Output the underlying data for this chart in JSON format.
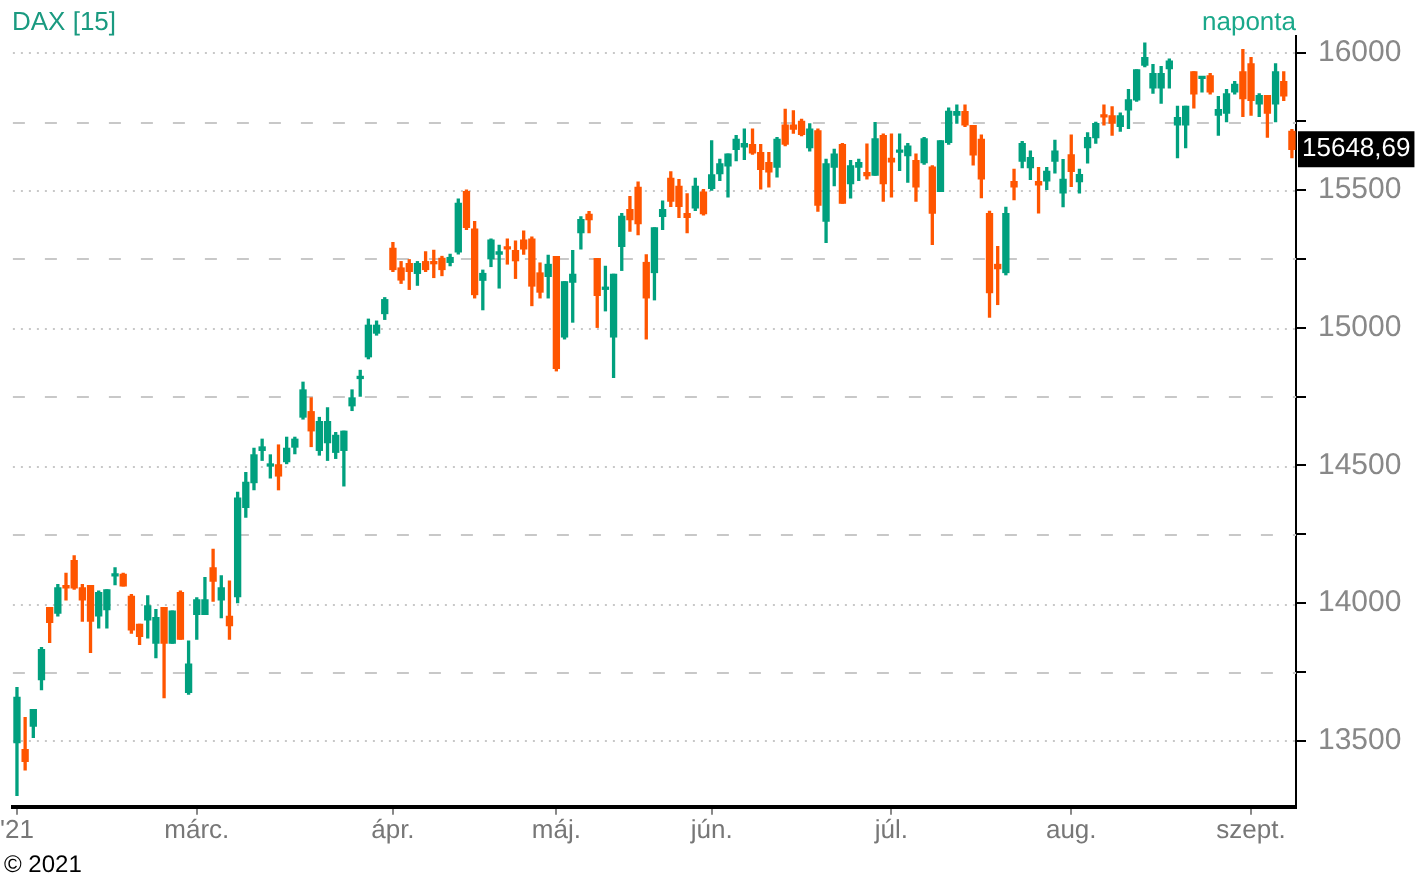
{
  "chart_data": {
    "type": "candlestick",
    "title": "DAX [15]",
    "subtitle": "naponta",
    "categories": [
      "'21",
      null,
      null,
      null,
      null,
      null,
      null,
      null,
      null,
      null,
      null,
      null,
      null,
      null,
      null,
      null,
      null,
      null,
      null,
      null,
      null,
      null,
      "márc.",
      null,
      null,
      null,
      null,
      null,
      null,
      null,
      null,
      null,
      null,
      null,
      null,
      null,
      null,
      null,
      null,
      null,
      null,
      null,
      null,
      null,
      null,
      null,
      "ápr.",
      null,
      null,
      null,
      null,
      null,
      null,
      null,
      null,
      null,
      null,
      null,
      null,
      null,
      null,
      null,
      null,
      null,
      null,
      null,
      "máj.",
      null,
      null,
      null,
      null,
      null,
      null,
      null,
      null,
      null,
      null,
      null,
      null,
      null,
      null,
      null,
      null,
      null,
      null,
      "jún.",
      null,
      null,
      null,
      null,
      null,
      null,
      null,
      null,
      null,
      null,
      null,
      null,
      null,
      null,
      null,
      null,
      null,
      null,
      null,
      null,
      null,
      "júl.",
      null,
      null,
      null,
      null,
      null,
      null,
      null,
      null,
      null,
      null,
      null,
      null,
      null,
      null,
      null,
      null,
      null,
      null,
      null,
      null,
      null,
      "aug.",
      null,
      null,
      null,
      null,
      null,
      null,
      null,
      null,
      null,
      null,
      null,
      null,
      null,
      null,
      null,
      null,
      null,
      null,
      null,
      null,
      null,
      "szept.",
      null,
      null,
      null,
      null,
      null
    ],
    "ohlc": [
      [
        13493,
        13693,
        13302,
        13657
      ],
      [
        13468,
        13584,
        13394,
        13425
      ],
      [
        13553,
        13613,
        13512,
        13613
      ],
      [
        13722,
        13838,
        13686,
        13831
      ],
      [
        13983,
        13983,
        13857,
        13930
      ],
      [
        13964,
        14067,
        13954,
        14055
      ],
      [
        14063,
        14108,
        14012,
        14055
      ],
      [
        14154,
        14171,
        14051,
        14055
      ],
      [
        14055,
        14067,
        13935,
        14012
      ],
      [
        14063,
        14063,
        13821,
        13935
      ],
      [
        13954,
        14043,
        13910,
        14038
      ],
      [
        13976,
        14048,
        13910,
        14048
      ],
      [
        14099,
        14128,
        14067,
        14104
      ],
      [
        14104,
        14108,
        14063,
        14063
      ],
      [
        14024,
        14031,
        13891,
        13903
      ],
      [
        13923,
        13923,
        13850,
        13879
      ],
      [
        13939,
        14026,
        13874,
        13990
      ],
      [
        13855,
        13976,
        13802,
        13947
      ],
      [
        13983,
        13983,
        13657,
        13855
      ],
      [
        13855,
        13971,
        13855,
        13971
      ],
      [
        14038,
        14043,
        13869,
        13869
      ],
      [
        13676,
        13862,
        13669,
        13778
      ],
      [
        13959,
        14019,
        13869,
        14012
      ],
      [
        13959,
        14092,
        13959,
        14012
      ],
      [
        14128,
        14195,
        14007,
        14080
      ],
      [
        14012,
        14099,
        13947,
        14055
      ],
      [
        13952,
        14080,
        13869,
        13918
      ],
      [
        14024,
        14402,
        14002,
        14381
      ],
      [
        14348,
        14474,
        14312,
        14438
      ],
      [
        14438,
        14562,
        14412,
        14538
      ],
      [
        14555,
        14595,
        14519,
        14567
      ],
      [
        14498,
        14538,
        14455,
        14502
      ],
      [
        14502,
        14574,
        14412,
        14462
      ],
      [
        14514,
        14602,
        14507,
        14562
      ],
      [
        14567,
        14602,
        14543,
        14595
      ],
      [
        14676,
        14802,
        14669,
        14774
      ],
      [
        14695,
        14745,
        14569,
        14626
      ],
      [
        14555,
        14674,
        14538,
        14659
      ],
      [
        14583,
        14709,
        14519,
        14659
      ],
      [
        14548,
        14619,
        14526,
        14609
      ],
      [
        14555,
        14624,
        14426,
        14624
      ],
      [
        14717,
        14774,
        14700,
        14745
      ],
      [
        14816,
        14845,
        14752,
        14821
      ],
      [
        14895,
        15031,
        14888,
        15009
      ],
      [
        14981,
        15024,
        14974,
        15009
      ],
      [
        15052,
        15109,
        15031,
        15102
      ],
      [
        15288,
        15309,
        15205,
        15212
      ],
      [
        15217,
        15240,
        15162,
        15174
      ],
      [
        15233,
        15247,
        15140,
        15205
      ],
      [
        15198,
        15240,
        15155,
        15233
      ],
      [
        15240,
        15276,
        15205,
        15212
      ],
      [
        15238,
        15281,
        15183,
        15233
      ],
      [
        15252,
        15259,
        15190,
        15212
      ],
      [
        15238,
        15267,
        15226,
        15255
      ],
      [
        15276,
        15467,
        15269,
        15452
      ],
      [
        15495,
        15500,
        15358,
        15365
      ],
      [
        15358,
        15386,
        15109,
        15121
      ],
      [
        15173,
        15209,
        15066,
        15197
      ],
      [
        15251,
        15322,
        15223,
        15318
      ],
      [
        15268,
        15299,
        15145,
        15272
      ],
      [
        15294,
        15322,
        15232,
        15287
      ],
      [
        15280,
        15315,
        15180,
        15244
      ],
      [
        15318,
        15351,
        15268,
        15287
      ],
      [
        15322,
        15329,
        15081,
        15152
      ],
      [
        15199,
        15235,
        15109,
        15130
      ],
      [
        15187,
        15263,
        15109,
        15230
      ],
      [
        15258,
        15258,
        14844,
        14853
      ],
      [
        14967,
        15167,
        14960,
        15167
      ],
      [
        15166,
        15280,
        15021,
        15194
      ],
      [
        15346,
        15403,
        15287,
        15393
      ],
      [
        15412,
        15422,
        15346,
        15393
      ],
      [
        15251,
        15251,
        15002,
        15118
      ],
      [
        15140,
        15223,
        15062,
        15145
      ],
      [
        14967,
        15194,
        14820,
        15194
      ],
      [
        15296,
        15415,
        15209,
        15405
      ],
      [
        15429,
        15476,
        15351,
        15393
      ],
      [
        15510,
        15529,
        15339,
        15379
      ],
      [
        15237,
        15265,
        14960,
        15109
      ],
      [
        15201,
        15363,
        15102,
        15363
      ],
      [
        15405,
        15460,
        15358,
        15429
      ],
      [
        15543,
        15566,
        15441,
        15460
      ],
      [
        15514,
        15538,
        15401,
        15441
      ],
      [
        15415,
        15486,
        15346,
        15401
      ],
      [
        15436,
        15543,
        15427,
        15514
      ],
      [
        15493,
        15502,
        15410,
        15415
      ],
      [
        15507,
        15679,
        15500,
        15555
      ],
      [
        15560,
        15612,
        15536,
        15595
      ],
      [
        15588,
        15631,
        15476,
        15631
      ],
      [
        15648,
        15698,
        15607,
        15684
      ],
      [
        15657,
        15722,
        15612,
        15669
      ],
      [
        15665,
        15722,
        15631,
        15636
      ],
      [
        15636,
        15665,
        15505,
        15576
      ],
      [
        15600,
        15636,
        15512,
        15567
      ],
      [
        15584,
        15691,
        15548,
        15684
      ],
      [
        15736,
        15793,
        15662,
        15667
      ],
      [
        15736,
        15788,
        15707,
        15722
      ],
      [
        15750,
        15757,
        15698,
        15703
      ],
      [
        15655,
        15741,
        15643,
        15722
      ],
      [
        15715,
        15722,
        15424,
        15446
      ],
      [
        15388,
        15612,
        15310,
        15595
      ],
      [
        15584,
        15648,
        15517,
        15631
      ],
      [
        15665,
        15669,
        15453,
        15453
      ],
      [
        15524,
        15607,
        15472,
        15588
      ],
      [
        15584,
        15612,
        15536,
        15600
      ],
      [
        15564,
        15667,
        15541,
        15553
      ],
      [
        15555,
        15745,
        15555,
        15686
      ],
      [
        15698,
        15703,
        15460,
        15524
      ],
      [
        15615,
        15703,
        15476,
        15603
      ],
      [
        15638,
        15703,
        15572,
        15643
      ],
      [
        15626,
        15669,
        15529,
        15660
      ],
      [
        15607,
        15631,
        15460,
        15512
      ],
      [
        15600,
        15691,
        15595,
        15686
      ],
      [
        15584,
        15588,
        15303,
        15417
      ],
      [
        15496,
        15679,
        15496,
        15679
      ],
      [
        15674,
        15798,
        15667,
        15786
      ],
      [
        15773,
        15809,
        15744,
        15785
      ],
      [
        15785,
        15809,
        15732,
        15737
      ],
      [
        15734,
        15734,
        15592,
        15628
      ],
      [
        15684,
        15700,
        15473,
        15541
      ],
      [
        15415,
        15423,
        15039,
        15128
      ],
      [
        15230,
        15295,
        15085,
        15215
      ],
      [
        15201,
        15437,
        15193,
        15415
      ],
      [
        15531,
        15575,
        15466,
        15512
      ],
      [
        15606,
        15676,
        15582,
        15669
      ],
      [
        15582,
        15642,
        15539,
        15618
      ],
      [
        15531,
        15582,
        15418,
        15519
      ],
      [
        15534,
        15582,
        15503,
        15568
      ],
      [
        15606,
        15681,
        15563,
        15642
      ],
      [
        15490,
        15611,
        15440,
        15539
      ],
      [
        15628,
        15700,
        15514,
        15568
      ],
      [
        15531,
        15575,
        15490,
        15556
      ],
      [
        15655,
        15708,
        15599,
        15691
      ],
      [
        15691,
        15746,
        15671,
        15742
      ],
      [
        15773,
        15809,
        15737,
        15766
      ],
      [
        15770,
        15802,
        15700,
        15744
      ],
      [
        15732,
        15780,
        15715,
        15770
      ],
      [
        15792,
        15865,
        15725,
        15828
      ],
      [
        15828,
        15937,
        15824,
        15937
      ],
      [
        15954,
        16034,
        15949,
        15981
      ],
      [
        15872,
        15956,
        15853,
        15923
      ],
      [
        15872,
        15949,
        15816,
        15923
      ],
      [
        15942,
        15976,
        15872,
        15969
      ],
      [
        15737,
        15804,
        15618,
        15763
      ],
      [
        15737,
        15804,
        15655,
        15804
      ],
      [
        15930,
        15930,
        15799,
        15850
      ],
      [
        15906,
        15911,
        15857,
        15911
      ],
      [
        15915,
        15923,
        15850,
        15857
      ],
      [
        15773,
        15840,
        15700,
        15792
      ],
      [
        15780,
        15865,
        15749,
        15850
      ],
      [
        15857,
        15894,
        15850,
        15884
      ],
      [
        15930,
        16010,
        15768,
        15833
      ],
      [
        15959,
        15981,
        15773,
        15826
      ],
      [
        15814,
        15850,
        15768,
        15843
      ],
      [
        15843,
        15843,
        15693,
        15780
      ],
      [
        15814,
        15959,
        15749,
        15930
      ],
      [
        15894,
        15930,
        15826,
        15843
      ],
      [
        15713,
        15720,
        15618,
        15648.69
      ]
    ],
    "colors": [
      "#00a07e",
      "#ff5500",
      "#00a07e",
      "#00a07e",
      "#ff5500",
      "#00a07e",
      "#ff5500",
      "#ff5500",
      "#ff5500",
      "#ff5500",
      "#00a07e",
      "#00a07e",
      "#00a07e",
      "#ff5500",
      "#ff5500",
      "#ff5500",
      "#00a07e",
      "#00a07e",
      "#ff5500",
      "#00a07e",
      "#ff5500",
      "#00a07e",
      "#00a07e",
      "#00a07e",
      "#ff5500",
      "#00a07e",
      "#ff5500",
      "#00a07e",
      "#00a07e",
      "#00a07e",
      "#00a07e",
      "#00a07e",
      "#ff5500",
      "#00a07e",
      "#00a07e",
      "#00a07e",
      "#ff5500",
      "#00a07e",
      "#00a07e",
      "#00a07e",
      "#00a07e",
      "#00a07e",
      "#00a07e",
      "#00a07e",
      "#00a07e",
      "#00a07e",
      "#ff5500",
      "#ff5500",
      "#ff5500",
      "#00a07e",
      "#ff5500",
      "#ff5500",
      "#ff5500",
      "#00a07e",
      "#00a07e",
      "#ff5500",
      "#ff5500",
      "#00a07e",
      "#00a07e",
      "#00a07e",
      "#ff5500",
      "#ff5500",
      "#ff5500",
      "#ff5500",
      "#ff5500",
      "#00a07e",
      "#ff5500",
      "#00a07e",
      "#00a07e",
      "#00a07e",
      "#ff5500",
      "#ff5500",
      "#00a07e",
      "#00a07e",
      "#00a07e",
      "#ff5500",
      "#ff5500",
      "#ff5500",
      "#00a07e",
      "#00a07e",
      "#ff5500",
      "#ff5500",
      "#ff5500",
      "#00a07e",
      "#ff5500",
      "#00a07e",
      "#00a07e",
      "#00a07e",
      "#00a07e",
      "#00a07e",
      "#ff5500",
      "#ff5500",
      "#ff5500",
      "#00a07e",
      "#ff5500",
      "#ff5500",
      "#ff5500",
      "#00a07e",
      "#ff5500",
      "#00a07e",
      "#00a07e",
      "#ff5500",
      "#00a07e",
      "#00a07e",
      "#ff5500",
      "#00a07e",
      "#ff5500",
      "#ff5500",
      "#00a07e",
      "#00a07e",
      "#ff5500",
      "#00a07e",
      "#ff5500",
      "#00a07e",
      "#00a07e",
      "#00a07e",
      "#ff5500",
      "#ff5500",
      "#ff5500",
      "#ff5500",
      "#ff5500",
      "#00a07e",
      "#ff5500",
      "#00a07e",
      "#00a07e",
      "#ff5500",
      "#00a07e",
      "#00a07e",
      "#00a07e",
      "#ff5500",
      "#00a07e",
      "#00a07e",
      "#00a07e",
      "#ff5500",
      "#ff5500",
      "#00a07e",
      "#00a07e",
      "#00a07e",
      "#00a07e",
      "#00a07e",
      "#00a07e",
      "#00a07e",
      "#00a07e",
      "#00a07e",
      "#ff5500",
      "#00a07e",
      "#ff5500",
      "#00a07e",
      "#00a07e",
      "#00a07e",
      "#ff5500",
      "#ff5500",
      "#00a07e",
      "#ff5500",
      "#00a07e",
      "#ff5500",
      "#ff5500"
    ],
    "ylim": [
      13260,
      16060
    ],
    "yticks": [
      13500,
      {
        "value": 13750,
        "label": null
      },
      14000,
      {
        "value": 14250,
        "label": null
      },
      14500,
      {
        "value": 14750,
        "label": null
      },
      15000,
      {
        "value": 15250,
        "label": null
      },
      15500,
      {
        "value": 15750,
        "label": null
      },
      16000
    ],
    "grid": "y",
    "annotations": [
      "15648,69",
      "© 2021"
    ]
  }
}
